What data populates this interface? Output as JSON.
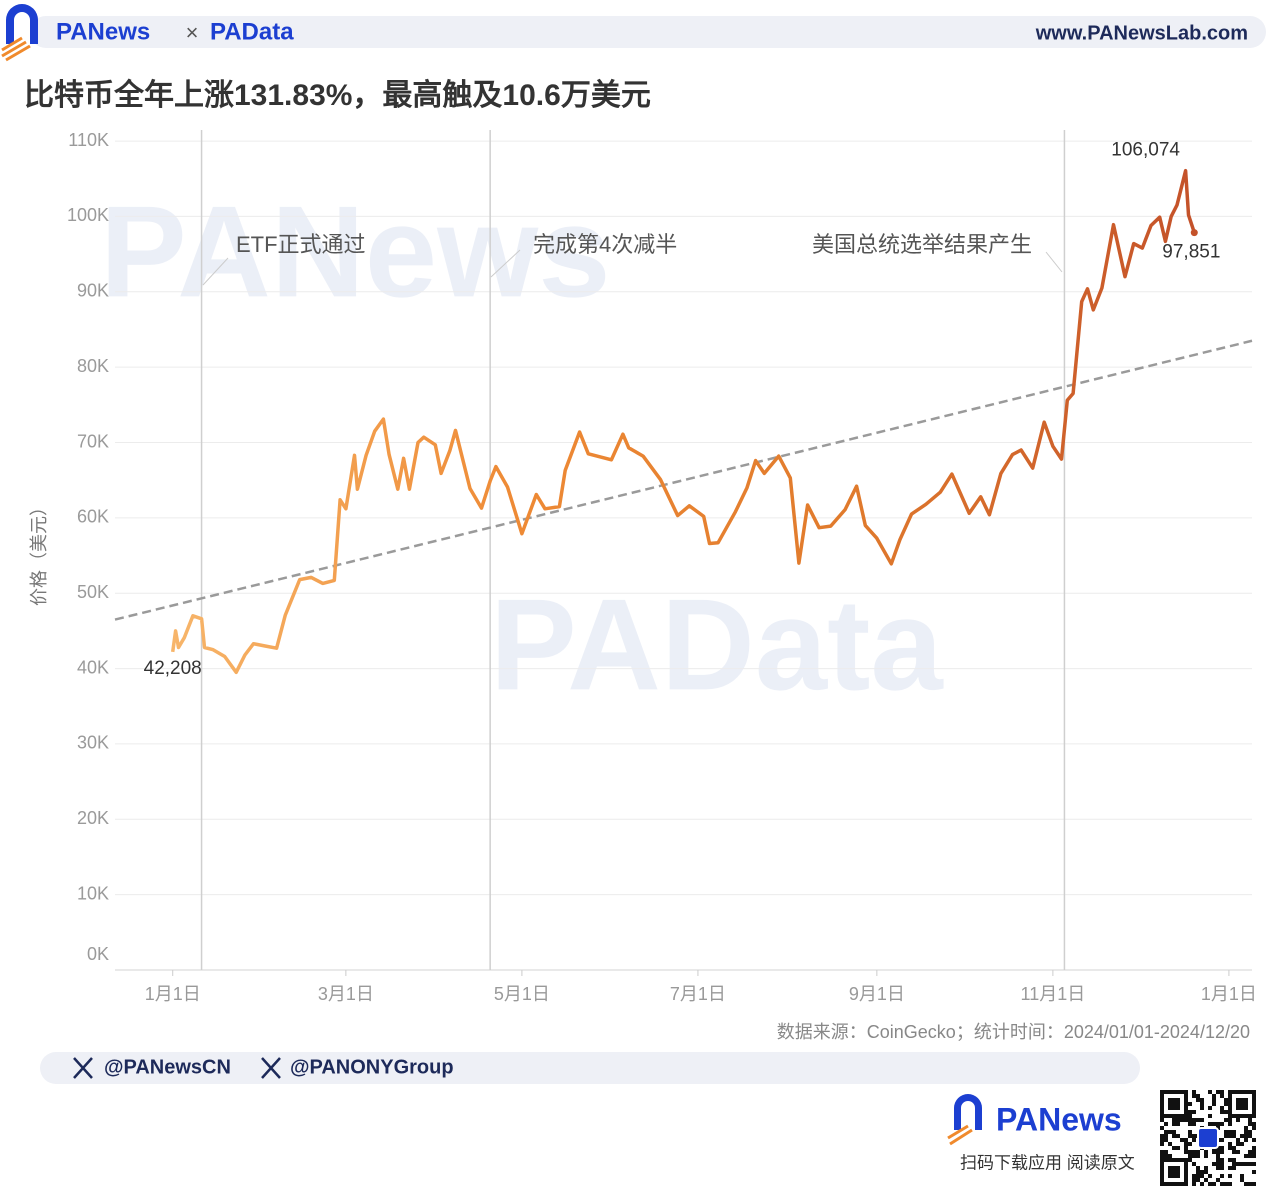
{
  "header": {
    "brand": "PANews",
    "separator": "×",
    "brand2": "PAData",
    "website": "www.PANewsLab.com"
  },
  "chart_data": {
    "type": "line",
    "title": "比特币全年上涨131.83%，最高触及10.6万美元",
    "y_label": "价格（美元）",
    "source": "数据来源：CoinGecko；统计时间：2024/01/01-2024/12/20",
    "watermarks": [
      "PANews",
      "PAData"
    ],
    "colors": [
      "#f7b56a",
      "#ee8a35",
      "#e07a2c",
      "#c4522a"
    ],
    "grid": true,
    "xlim": [
      "2023-12-12",
      "2025-01-09"
    ],
    "xticks": [
      {
        "value": "2024-01-01",
        "label": "1月1日"
      },
      {
        "value": "2024-03-01",
        "label": "3月1日"
      },
      {
        "value": "2024-05-01",
        "label": "5月1日"
      },
      {
        "value": "2024-07-01",
        "label": "7月1日"
      },
      {
        "value": "2024-09-01",
        "label": "9月1日"
      },
      {
        "value": "2024-11-01",
        "label": "11月1日"
      },
      {
        "value": "2025-01-01",
        "label": "1月1日"
      }
    ],
    "ylim": [
      0,
      112000
    ],
    "yticks": [
      {
        "value": 0,
        "label": "0K"
      },
      {
        "value": 10000,
        "label": "10K"
      },
      {
        "value": 20000,
        "label": "20K"
      },
      {
        "value": 30000,
        "label": "30K"
      },
      {
        "value": 40000,
        "label": "40K"
      },
      {
        "value": 50000,
        "label": "50K"
      },
      {
        "value": 60000,
        "label": "60K"
      },
      {
        "value": 70000,
        "label": "70K"
      },
      {
        "value": 80000,
        "label": "80K"
      },
      {
        "value": 90000,
        "label": "90K"
      },
      {
        "value": 100000,
        "label": "100K"
      },
      {
        "value": 110000,
        "label": "110K"
      }
    ],
    "annotations": [
      {
        "x": "2024-01-11",
        "label": "ETF正式通过"
      },
      {
        "x": "2024-04-20",
        "label": "完成第4次减半"
      },
      {
        "x": "2024-11-05",
        "label": "美国总统选举结果产生"
      }
    ],
    "trendline": {
      "x": [
        "2023-12-12",
        "2025-01-09"
      ],
      "values": [
        46500,
        83500
      ]
    },
    "x": [
      "2024-01-01",
      "2024-01-02",
      "2024-01-03",
      "2024-01-05",
      "2024-01-08",
      "2024-01-11",
      "2024-01-12",
      "2024-01-15",
      "2024-01-19",
      "2024-01-23",
      "2024-01-26",
      "2024-01-29",
      "2024-02-02",
      "2024-02-06",
      "2024-02-09",
      "2024-02-14",
      "2024-02-18",
      "2024-02-22",
      "2024-02-26",
      "2024-02-28",
      "2024-03-01",
      "2024-03-04",
      "2024-03-05",
      "2024-03-08",
      "2024-03-11",
      "2024-03-14",
      "2024-03-16",
      "2024-03-19",
      "2024-03-21",
      "2024-03-23",
      "2024-03-26",
      "2024-03-28",
      "2024-04-01",
      "2024-04-03",
      "2024-04-06",
      "2024-04-08",
      "2024-04-13",
      "2024-04-17",
      "2024-04-20",
      "2024-04-22",
      "2024-04-26",
      "2024-05-01",
      "2024-05-06",
      "2024-05-09",
      "2024-05-14",
      "2024-05-16",
      "2024-05-21",
      "2024-05-24",
      "2024-06-01",
      "2024-06-05",
      "2024-06-07",
      "2024-06-12",
      "2024-06-18",
      "2024-06-24",
      "2024-06-28",
      "2024-07-03",
      "2024-07-05",
      "2024-07-08",
      "2024-07-14",
      "2024-07-18",
      "2024-07-21",
      "2024-07-24",
      "2024-07-29",
      "2024-08-02",
      "2024-08-05",
      "2024-08-08",
      "2024-08-12",
      "2024-08-16",
      "2024-08-21",
      "2024-08-25",
      "2024-08-28",
      "2024-09-01",
      "2024-09-06",
      "2024-09-09",
      "2024-09-13",
      "2024-09-18",
      "2024-09-23",
      "2024-09-27",
      "2024-10-03",
      "2024-10-07",
      "2024-10-10",
      "2024-10-14",
      "2024-10-18",
      "2024-10-21",
      "2024-10-25",
      "2024-10-29",
      "2024-11-01",
      "2024-11-04",
      "2024-11-06",
      "2024-11-08",
      "2024-11-11",
      "2024-11-13",
      "2024-11-15",
      "2024-11-18",
      "2024-11-22",
      "2024-11-26",
      "2024-11-29",
      "2024-12-02",
      "2024-12-05",
      "2024-12-08",
      "2024-12-10",
      "2024-12-12",
      "2024-12-14",
      "2024-12-17",
      "2024-12-18",
      "2024-12-20"
    ],
    "values": [
      42208,
      45000,
      42800,
      44100,
      47000,
      46600,
      42800,
      42500,
      41600,
      39500,
      41800,
      43300,
      43000,
      42700,
      47100,
      51800,
      52100,
      51300,
      51700,
      62400,
      61200,
      68300,
      63800,
      68300,
      71500,
      73100,
      68400,
      63800,
      67900,
      63800,
      70000,
      70700,
      69700,
      65900,
      68900,
      71600,
      63900,
      61300,
      64900,
      66800,
      64100,
      57900,
      63100,
      61200,
      61500,
      66300,
      71400,
      68500,
      67700,
      71100,
      69300,
      68200,
      65100,
      60300,
      61600,
      60200,
      56600,
      56700,
      60800,
      64000,
      67600,
      65900,
      68200,
      65300,
      54000,
      61700,
      58700,
      58900,
      61100,
      64200,
      59000,
      57300,
      53900,
      57100,
      60500,
      61800,
      63400,
      65800,
      60600,
      62800,
      60400,
      65900,
      68400,
      69000,
      66600,
      72700,
      69500,
      67800,
      75600,
      76500,
      88700,
      90400,
      87600,
      90500,
      98900,
      92000,
      96400,
      95800,
      98800,
      99900,
      96700,
      100000,
      101500,
      106074,
      100200,
      97851
    ],
    "value_labels": [
      "42,208",
      null,
      null,
      null,
      null,
      null,
      null,
      null,
      null,
      null,
      null,
      null,
      null,
      null,
      null,
      null,
      null,
      null,
      null,
      null,
      null,
      null,
      null,
      null,
      null,
      null,
      null,
      null,
      null,
      null,
      null,
      null,
      null,
      null,
      null,
      null,
      null,
      null,
      null,
      null,
      null,
      null,
      null,
      null,
      null,
      null,
      null,
      null,
      null,
      null,
      null,
      null,
      null,
      null,
      null,
      null,
      null,
      null,
      null,
      null,
      null,
      null,
      null,
      null,
      null,
      null,
      null,
      null,
      null,
      null,
      null,
      null,
      null,
      null,
      null,
      null,
      null,
      null,
      null,
      null,
      null,
      null,
      null,
      null,
      null,
      null,
      null,
      null,
      null,
      null,
      null,
      null,
      null,
      null,
      null,
      null,
      null,
      null,
      null,
      null,
      null,
      null,
      null,
      "106,074",
      null,
      "97,851"
    ]
  },
  "footer": {
    "social": [
      "@PANewsCN",
      "@PANONYGroup"
    ],
    "brand": "PANews",
    "cta": "扫码下载应用  阅读原文"
  }
}
